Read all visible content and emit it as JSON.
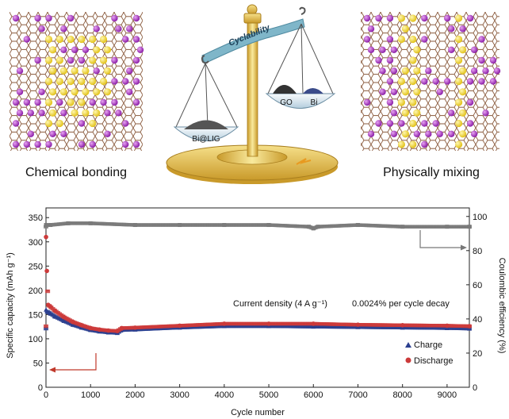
{
  "illustration": {
    "left_caption": "Chemical bonding",
    "right_caption": "Physically mixing",
    "beam_label": "Cyclability",
    "left_pan_label": "Bi@LIG",
    "right_pan_label_1": "GO",
    "right_pan_label_2": "Bi"
  },
  "chart_data": {
    "type": "scatter",
    "xlabel": "Cycle number",
    "ylabel_left": "Specific capacity (mAh g⁻¹)",
    "ylabel_right": "Coulombic efficiency (%)",
    "xlim": [
      0,
      9500
    ],
    "ylim_left": [
      0,
      370
    ],
    "ylim_right": [
      0,
      105
    ],
    "x_ticks": [
      0,
      1000,
      2000,
      3000,
      4000,
      5000,
      6000,
      7000,
      8000,
      9000
    ],
    "y_left_ticks": [
      0,
      50,
      100,
      150,
      200,
      250,
      300,
      350
    ],
    "y_right_ticks": [
      0,
      20,
      40,
      60,
      80,
      100
    ],
    "legend_position": "bottom-right",
    "annotations": {
      "condition": "Current density (4 A g⁻¹)",
      "decay": "0.0024% per cycle decay"
    },
    "series": [
      {
        "name": "Charge",
        "axis": "left",
        "color": "#2b3f8f",
        "marker": "triangle",
        "x": [
          1,
          20,
          50,
          100,
          200,
          400,
          600,
          800,
          1000,
          1200,
          1400,
          1600,
          1700,
          2000,
          3000,
          4000,
          5000,
          6000,
          7000,
          8000,
          9000,
          9500
        ],
        "y": [
          160,
          157,
          155,
          152,
          146,
          137,
          129,
          123,
          118,
          115,
          113,
          112,
          118,
          119,
          123,
          126,
          126,
          125,
          124,
          123,
          122,
          121
        ]
      },
      {
        "name": "Discharge",
        "axis": "left",
        "color": "#cc3a3a",
        "marker": "circle",
        "x": [
          1,
          20,
          50,
          100,
          200,
          400,
          600,
          800,
          1000,
          1200,
          1400,
          1600,
          1700,
          2000,
          3000,
          4000,
          5000,
          6000,
          7000,
          8000,
          9000,
          9500
        ],
        "y": [
          310,
          240,
          170,
          166,
          158,
          145,
          135,
          128,
          122,
          119,
          117,
          116,
          122,
          123,
          127,
          131,
          131,
          131,
          129,
          128,
          127,
          126
        ]
      },
      {
        "name": "",
        "axis": "right",
        "color": "#7a7a7a",
        "marker": "square",
        "x": [
          1,
          100,
          500,
          1000,
          2000,
          3000,
          4000,
          5000,
          5900,
          6000,
          6100,
          7000,
          8000,
          9000,
          9500
        ],
        "y": [
          95,
          95,
          96,
          96,
          95,
          95,
          95,
          95,
          94,
          93,
          94,
          95,
          94,
          94,
          94
        ]
      }
    ]
  }
}
